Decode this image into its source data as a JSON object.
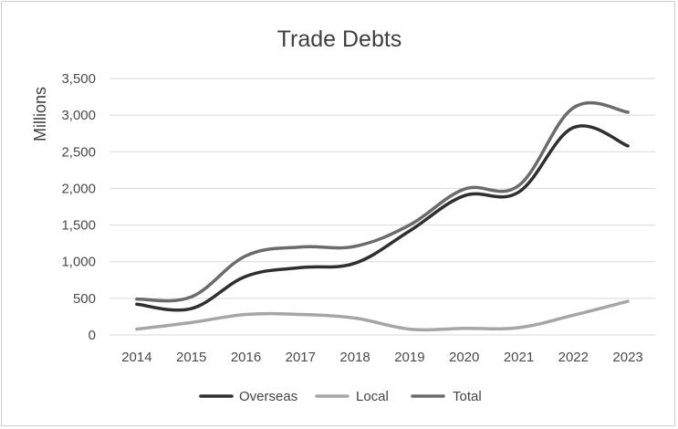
{
  "chart_data": {
    "type": "line",
    "title": "Trade Debts",
    "ylabel": "Millions",
    "xlabel": "",
    "categories": [
      "2014",
      "2015",
      "2016",
      "2017",
      "2018",
      "2019",
      "2020",
      "2021",
      "2022",
      "2023"
    ],
    "ylim": [
      0,
      3500
    ],
    "yticks": [
      0,
      500,
      1000,
      1500,
      2000,
      2500,
      3000,
      3500
    ],
    "ytick_labels": [
      "0",
      "500",
      "1,000",
      "1,500",
      "2,000",
      "2,500",
      "3,000",
      "3,500"
    ],
    "grid": true,
    "legend_position": "bottom",
    "series": [
      {
        "name": "Overseas",
        "color": "#2f2f2f",
        "values": [
          420,
          360,
          800,
          920,
          980,
          1420,
          1900,
          1950,
          2830,
          2580
        ]
      },
      {
        "name": "Local",
        "color": "#a6a6a6",
        "values": [
          80,
          170,
          280,
          280,
          230,
          80,
          90,
          100,
          270,
          460
        ]
      },
      {
        "name": "Total",
        "color": "#6b6b6b",
        "values": [
          490,
          520,
          1080,
          1200,
          1210,
          1500,
          1990,
          2040,
          3100,
          3040
        ]
      }
    ]
  }
}
